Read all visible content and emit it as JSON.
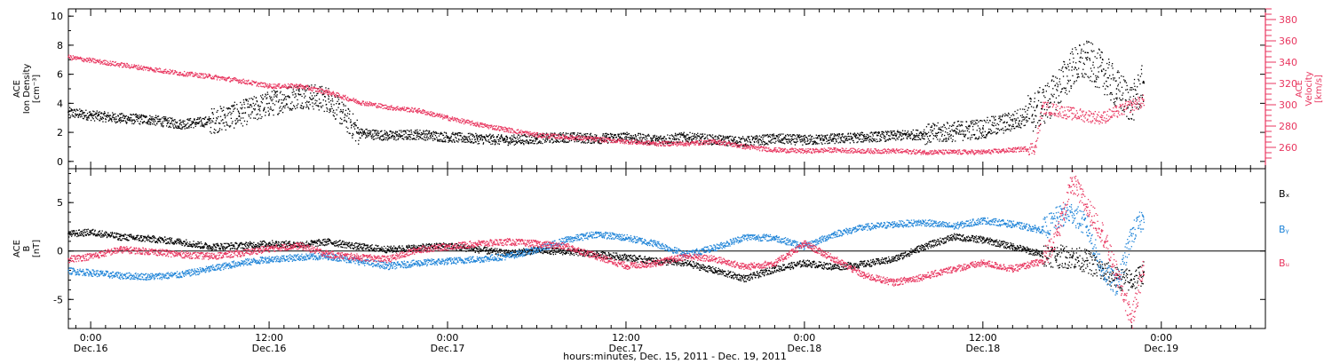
{
  "colors": {
    "black": "#000000",
    "blue": "#1f84d8",
    "red": "#e8365f"
  },
  "chart_data": [
    {
      "type": "scatter",
      "panel": "top",
      "ylabel_lines": [
        "ACE",
        "Ion Density",
        "[cm⁻³]"
      ],
      "y2label_lines": [
        "ACE",
        "Velocity",
        "[km/s]"
      ],
      "ylim": [
        -0.5,
        10.5
      ],
      "y2lim": [
        240,
        390
      ],
      "yticks": [
        0,
        2,
        4,
        6,
        8,
        10
      ],
      "y2ticks": [
        260,
        280,
        300,
        320,
        340,
        360,
        380
      ],
      "series": [
        {
          "color": "black",
          "axis": "left",
          "x": [
            -1.5,
            0,
            2,
            4,
            6,
            8,
            10,
            12,
            14,
            16,
            18,
            20,
            22,
            24,
            26,
            28,
            30,
            32,
            34,
            36,
            38,
            40,
            42,
            44,
            46,
            48,
            50,
            52,
            54,
            56,
            58,
            60,
            62,
            63.5,
            64.5,
            66,
            67,
            68,
            69,
            70,
            70.8
          ],
          "y": [
            3.4,
            3.2,
            3.0,
            2.9,
            2.6,
            2.8,
            3.3,
            4.0,
            4.6,
            4.3,
            2.0,
            1.8,
            1.9,
            1.7,
            1.6,
            1.5,
            1.6,
            1.7,
            1.6,
            1.7,
            1.5,
            1.7,
            1.5,
            1.4,
            1.6,
            1.5,
            1.6,
            1.7,
            1.8,
            1.9,
            2.1,
            2.3,
            2.8,
            3.5,
            4.3,
            6.5,
            7.0,
            6.2,
            5.0,
            4.0,
            5.5
          ]
        },
        {
          "color": "red",
          "axis": "right",
          "x": [
            -1.5,
            0,
            2,
            4,
            6,
            8,
            10,
            12,
            14,
            16,
            18,
            20,
            22,
            24,
            26,
            28,
            30,
            32,
            34,
            36,
            38,
            40,
            42,
            44,
            46,
            48,
            50,
            52,
            54,
            56,
            58,
            60,
            62,
            63.5,
            64,
            66,
            68,
            69,
            70,
            70.8
          ],
          "y": [
            345,
            342,
            338,
            334,
            330,
            327,
            323,
            318,
            318,
            312,
            303,
            298,
            295,
            288,
            282,
            277,
            272,
            270,
            268,
            266,
            264,
            264,
            266,
            261,
            258,
            257,
            258,
            257,
            257,
            256,
            256,
            256,
            258,
            260,
            298,
            292,
            288,
            294,
            300,
            304
          ]
        }
      ]
    },
    {
      "type": "scatter",
      "panel": "bottom",
      "ylabel_lines": [
        "ACE",
        "B",
        "[nT]"
      ],
      "ylim": [
        -8,
        8.5
      ],
      "yticks": [
        -5,
        0,
        5
      ],
      "legend": [
        "Bₓ",
        "Bᵧ",
        "Bᵤ"
      ],
      "legend_placement": "right",
      "series": [
        {
          "name": "Bₓ",
          "color": "black",
          "x": [
            -1.5,
            0,
            2,
            4,
            6,
            8,
            10,
            12,
            14,
            16,
            18,
            20,
            22,
            24,
            26,
            28,
            30,
            32,
            34,
            36,
            38,
            40,
            42,
            44,
            46,
            48,
            50,
            52,
            54,
            56,
            58,
            60,
            62,
            64,
            65,
            66,
            67,
            68,
            69,
            70,
            70.8
          ],
          "y": [
            1.8,
            2.0,
            1.5,
            1.3,
            1.0,
            0.5,
            0.6,
            0.8,
            0.7,
            1.0,
            0.5,
            0.2,
            0.4,
            0.6,
            0.2,
            -0.2,
            0.1,
            0.0,
            -0.3,
            -0.6,
            -1.0,
            -1.2,
            -2.0,
            -2.8,
            -1.8,
            -1.2,
            -1.6,
            -1.3,
            -0.8,
            0.5,
            1.5,
            1.2,
            0.5,
            -0.3,
            -0.5,
            -0.6,
            -1.0,
            -2.0,
            -2.8,
            -3.0,
            -2.2
          ]
        },
        {
          "name": "Bᵧ",
          "color": "blue",
          "x": [
            -1.5,
            0,
            2,
            4,
            6,
            8,
            10,
            12,
            14,
            16,
            18,
            20,
            22,
            24,
            26,
            28,
            30,
            32,
            34,
            36,
            38,
            40,
            42,
            44,
            46,
            48,
            50,
            52,
            54,
            56,
            58,
            60,
            62,
            64,
            65,
            66,
            67,
            68,
            69,
            70,
            70.8
          ],
          "y": [
            -2.0,
            -2.2,
            -2.5,
            -2.6,
            -2.4,
            -1.8,
            -1.2,
            -0.8,
            -0.6,
            -0.5,
            -1.0,
            -1.5,
            -1.2,
            -1.0,
            -0.8,
            -0.5,
            0.2,
            1.2,
            1.8,
            1.4,
            0.8,
            -0.3,
            0.4,
            1.5,
            1.4,
            0.5,
            1.8,
            2.5,
            2.8,
            3.0,
            2.6,
            3.2,
            2.8,
            2.2,
            3.5,
            4.0,
            2.5,
            -2.0,
            -3.5,
            1.8,
            3.5
          ]
        },
        {
          "name": "Bᵤ",
          "color": "red",
          "x": [
            -1.5,
            0,
            2,
            4,
            6,
            8,
            10,
            12,
            14,
            16,
            18,
            20,
            22,
            24,
            26,
            28,
            30,
            32,
            34,
            36,
            38,
            40,
            42,
            44,
            46,
            48,
            50,
            52,
            54,
            56,
            58,
            60,
            62,
            64,
            65,
            66,
            67,
            68,
            69,
            70,
            70.8
          ],
          "y": [
            -0.8,
            -0.5,
            0.2,
            0.0,
            -0.3,
            -0.5,
            -0.2,
            0.3,
            0.6,
            -0.3,
            -0.6,
            -0.8,
            0.2,
            0.5,
            0.8,
            1.0,
            0.8,
            0.5,
            -0.5,
            -1.5,
            -1.2,
            -0.5,
            -0.8,
            -1.6,
            -1.2,
            0.8,
            -0.8,
            -2.5,
            -3.2,
            -2.6,
            -1.8,
            -1.2,
            -1.8,
            -1.0,
            2.0,
            7.2,
            4.5,
            2.0,
            -2.5,
            -7.0,
            -1.5
          ]
        }
      ]
    }
  ],
  "x_axis": {
    "xlim": [
      -1.5,
      79
    ],
    "ticks": [
      {
        "x": 0,
        "line1": "0:00",
        "line2": "Dec.16"
      },
      {
        "x": 12,
        "line1": "12:00",
        "line2": "Dec.16"
      },
      {
        "x": 24,
        "line1": "0:00",
        "line2": "Dec.17"
      },
      {
        "x": 36,
        "line1": "12:00",
        "line2": "Dec.17"
      },
      {
        "x": 48,
        "line1": "0:00",
        "line2": "Dec.18"
      },
      {
        "x": 60,
        "line1": "12:00",
        "line2": "Dec.18"
      },
      {
        "x": 72,
        "line1": "0:00",
        "line2": "Dec.19"
      }
    ],
    "minor_step": 1,
    "label": "hours:minutes, Dec. 15, 2011 - Dec. 19, 2011"
  }
}
